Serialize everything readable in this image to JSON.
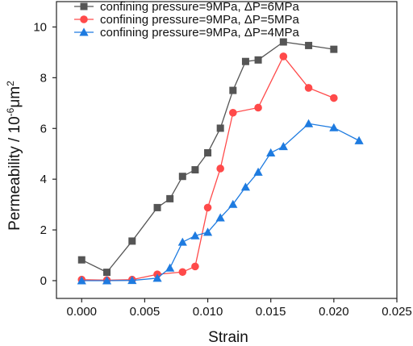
{
  "chart_data": {
    "type": "line",
    "title": "",
    "xlabel": "Strain",
    "ylabel": "Permeability / 10",
    "ylabel_exp": "-6",
    "ylabel_unit": "μm",
    "ylabel_unit_exp": "2",
    "xlim": [
      -0.002,
      0.025
    ],
    "ylim": [
      -0.7,
      11.0
    ],
    "xticks": [
      "0.000",
      "0.005",
      "0.010",
      "0.015",
      "0.020",
      "0.025"
    ],
    "yticks": [
      "0",
      "2",
      "4",
      "6",
      "8",
      "10"
    ],
    "grid": false,
    "legend_position": "top-left",
    "series": [
      {
        "name": "confining pressure=9MPa, ΔP=6MPa",
        "color": "#555555",
        "marker": "square",
        "points": [
          [
            0.0,
            0.82
          ],
          [
            0.002,
            0.33
          ],
          [
            0.004,
            1.56
          ],
          [
            0.006,
            2.88
          ],
          [
            0.007,
            3.23
          ],
          [
            0.008,
            4.11
          ],
          [
            0.009,
            4.37
          ],
          [
            0.01,
            5.04
          ],
          [
            0.011,
            6.01
          ],
          [
            0.012,
            7.5
          ],
          [
            0.013,
            8.64
          ],
          [
            0.014,
            8.7
          ],
          [
            0.016,
            9.41
          ],
          [
            0.018,
            9.27
          ],
          [
            0.02,
            9.12
          ]
        ]
      },
      {
        "name": "confining pressure=9MPa, ΔP=5MPa",
        "color": "#ff4a4a",
        "marker": "circle",
        "points": [
          [
            0.0,
            0.04
          ],
          [
            0.002,
            0.02
          ],
          [
            0.004,
            0.04
          ],
          [
            0.006,
            0.25
          ],
          [
            0.008,
            0.34
          ],
          [
            0.009,
            0.56
          ],
          [
            0.01,
            2.88
          ],
          [
            0.011,
            4.42
          ],
          [
            0.012,
            6.62
          ],
          [
            0.014,
            6.82
          ],
          [
            0.016,
            8.84
          ],
          [
            0.018,
            7.6
          ],
          [
            0.02,
            7.2
          ]
        ]
      },
      {
        "name": "confining pressure=9MPa, ΔP=4MPa",
        "color": "#1e7be0",
        "marker": "triangle",
        "points": [
          [
            0.0,
            0.0
          ],
          [
            0.002,
            0.0
          ],
          [
            0.004,
            0.01
          ],
          [
            0.006,
            0.1
          ],
          [
            0.007,
            0.5
          ],
          [
            0.008,
            1.52
          ],
          [
            0.009,
            1.77
          ],
          [
            0.01,
            1.91
          ],
          [
            0.011,
            2.48
          ],
          [
            0.012,
            3.01
          ],
          [
            0.013,
            3.69
          ],
          [
            0.014,
            4.28
          ],
          [
            0.015,
            5.04
          ],
          [
            0.016,
            5.29
          ],
          [
            0.018,
            6.19
          ],
          [
            0.02,
            6.03
          ],
          [
            0.022,
            5.52
          ]
        ]
      }
    ]
  }
}
